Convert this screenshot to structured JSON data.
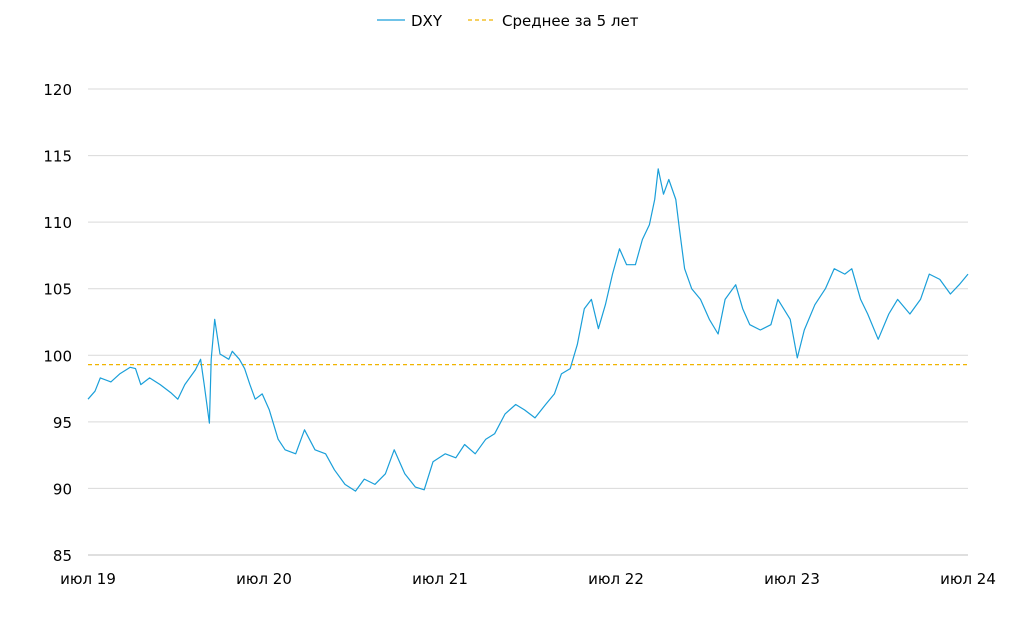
{
  "chart_data": {
    "type": "line",
    "title": "",
    "xlabel": "",
    "ylabel": "",
    "ylim": [
      85,
      120
    ],
    "yticks": [
      85,
      90,
      95,
      100,
      105,
      110,
      115,
      120
    ],
    "xlim": [
      2019.5,
      2024.5
    ],
    "xticks": [
      {
        "x": 2019.5,
        "label": "июл 19"
      },
      {
        "x": 2020.5,
        "label": "июл 20"
      },
      {
        "x": 2021.5,
        "label": "июл 21"
      },
      {
        "x": 2022.5,
        "label": "июл 22"
      },
      {
        "x": 2023.5,
        "label": "июл 23"
      },
      {
        "x": 2024.5,
        "label": "июл 24"
      }
    ],
    "grid": true,
    "legend_placement": "top-center",
    "series": [
      {
        "name": "DXY",
        "color": "#1a9fd9",
        "style": "solid",
        "x": [
          2019.5,
          2019.54,
          2019.57,
          2019.63,
          2019.68,
          2019.74,
          2019.77,
          2019.8,
          2019.85,
          2019.91,
          2019.97,
          2020.01,
          2020.05,
          2020.11,
          2020.14,
          2020.16,
          2020.19,
          2020.2,
          2020.22,
          2020.25,
          2020.3,
          2020.32,
          2020.36,
          2020.39,
          2020.42,
          2020.45,
          2020.49,
          2020.53,
          2020.58,
          2020.62,
          2020.68,
          2020.73,
          2020.79,
          2020.85,
          2020.9,
          2020.96,
          2021.02,
          2021.07,
          2021.13,
          2021.19,
          2021.24,
          2021.3,
          2021.36,
          2021.41,
          2021.46,
          2021.53,
          2021.59,
          2021.64,
          2021.7,
          2021.76,
          2021.81,
          2021.87,
          2021.93,
          2021.98,
          2022.04,
          2022.1,
          2022.15,
          2022.19,
          2022.24,
          2022.28,
          2022.32,
          2022.36,
          2022.4,
          2022.44,
          2022.48,
          2022.52,
          2022.56,
          2022.61,
          2022.65,
          2022.69,
          2022.72,
          2022.74,
          2022.77,
          2022.8,
          2022.84,
          2022.86,
          2022.89,
          2022.93,
          2022.98,
          2023.03,
          2023.08,
          2023.12,
          2023.18,
          2023.22,
          2023.26,
          2023.32,
          2023.38,
          2023.42,
          2023.49,
          2023.53,
          2023.57,
          2023.63,
          2023.69,
          2023.74,
          2023.8,
          2023.84,
          2023.89,
          2023.93,
          2023.99,
          2024.05,
          2024.1,
          2024.17,
          2024.23,
          2024.28,
          2024.34,
          2024.4,
          2024.45,
          2024.5
        ],
        "values": [
          96.7,
          97.3,
          98.3,
          98.0,
          98.6,
          99.1,
          99.0,
          97.8,
          98.3,
          97.8,
          97.2,
          96.7,
          97.8,
          98.9,
          99.7,
          97.8,
          94.9,
          99.7,
          102.7,
          100.1,
          99.7,
          100.3,
          99.7,
          99.0,
          97.8,
          96.7,
          97.1,
          95.9,
          93.7,
          92.9,
          92.6,
          94.4,
          92.9,
          92.6,
          91.4,
          90.3,
          89.8,
          90.7,
          90.3,
          91.1,
          92.9,
          91.1,
          90.1,
          89.9,
          92.0,
          92.6,
          92.3,
          93.3,
          92.6,
          93.7,
          94.1,
          95.6,
          96.3,
          95.9,
          95.3,
          96.3,
          97.1,
          98.6,
          99.0,
          100.8,
          103.5,
          104.2,
          102.0,
          103.8,
          106.1,
          108.0,
          106.8,
          106.8,
          108.7,
          109.8,
          111.7,
          114.0,
          112.1,
          113.2,
          111.7,
          109.5,
          106.5,
          105.0,
          104.2,
          102.7,
          101.6,
          104.2,
          105.3,
          103.5,
          102.3,
          101.9,
          102.3,
          104.2,
          102.7,
          99.8,
          101.9,
          103.8,
          105.0,
          106.5,
          106.1,
          106.5,
          104.2,
          103.1,
          101.2,
          103.1,
          104.2,
          103.1,
          104.2,
          106.1,
          105.7,
          104.6,
          105.3,
          106.1
        ]
      },
      {
        "name": "Среднее за 5 лет",
        "color": "#f0b400",
        "style": "dashed",
        "x": [
          2019.5,
          2024.5
        ],
        "values": [
          99.3,
          99.3
        ]
      }
    ]
  }
}
